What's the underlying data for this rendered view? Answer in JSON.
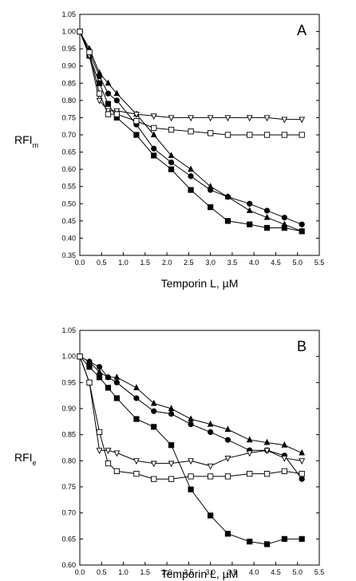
{
  "chart_data": [
    {
      "type": "line",
      "panel_label": "A",
      "xlabel": "Temporin L, µM",
      "ylabel": "RFI",
      "ylabel_sub": "m",
      "xlim": [
        0.0,
        5.5
      ],
      "ylim": [
        0.35,
        1.05
      ],
      "xticks": [
        "0.0",
        "0.5",
        "1.0",
        "1.5",
        "2.0",
        "2.5",
        "3.0",
        "3.5",
        "4.0",
        "4.5",
        "5.0",
        "5.5"
      ],
      "yticks": [
        "0.35",
        "0.40",
        "0.45",
        "0.50",
        "0.55",
        "0.60",
        "0.65",
        "0.70",
        "0.75",
        "0.80",
        "0.85",
        "0.90",
        "0.95",
        "1.00",
        "1.05"
      ],
      "grid": false,
      "series": [
        {
          "marker": "filled-triangle",
          "x": [
            0.0,
            0.22,
            0.45,
            0.65,
            0.85,
            1.3,
            1.7,
            2.1,
            2.55,
            3.0,
            3.4,
            3.9,
            4.3,
            4.7,
            5.1
          ],
          "y": [
            1.0,
            0.95,
            0.88,
            0.85,
            0.82,
            0.76,
            0.7,
            0.64,
            0.6,
            0.55,
            0.52,
            0.48,
            0.46,
            0.44,
            0.42
          ]
        },
        {
          "marker": "filled-circle",
          "x": [
            0.0,
            0.22,
            0.45,
            0.65,
            0.85,
            1.3,
            1.7,
            2.1,
            2.55,
            3.0,
            3.4,
            3.9,
            4.3,
            4.7,
            5.1
          ],
          "y": [
            1.0,
            0.94,
            0.87,
            0.82,
            0.8,
            0.73,
            0.66,
            0.62,
            0.58,
            0.54,
            0.52,
            0.5,
            0.48,
            0.46,
            0.44
          ]
        },
        {
          "marker": "filled-square",
          "x": [
            0.0,
            0.22,
            0.45,
            0.65,
            0.85,
            1.3,
            1.7,
            2.1,
            2.55,
            3.0,
            3.4,
            3.9,
            4.3,
            4.7,
            5.1
          ],
          "y": [
            1.0,
            0.93,
            0.85,
            0.79,
            0.75,
            0.7,
            0.64,
            0.6,
            0.54,
            0.49,
            0.45,
            0.44,
            0.43,
            0.43,
            0.42
          ]
        },
        {
          "marker": "open-triangle-down",
          "x": [
            0.0,
            0.22,
            0.45,
            0.65,
            0.85,
            1.3,
            1.7,
            2.1,
            2.55,
            3.0,
            3.4,
            3.9,
            4.3,
            4.7,
            5.1
          ],
          "y": [
            1.0,
            0.93,
            0.8,
            0.77,
            0.77,
            0.76,
            0.755,
            0.75,
            0.75,
            0.75,
            0.75,
            0.75,
            0.75,
            0.745,
            0.745
          ]
        },
        {
          "marker": "open-square",
          "x": [
            0.0,
            0.22,
            0.45,
            0.65,
            0.85,
            1.3,
            1.7,
            2.1,
            2.55,
            3.0,
            3.4,
            3.9,
            4.3,
            4.7,
            5.1
          ],
          "y": [
            1.0,
            0.94,
            0.82,
            0.76,
            0.76,
            0.74,
            0.72,
            0.715,
            0.71,
            0.705,
            0.7,
            0.7,
            0.7,
            0.7,
            0.7
          ]
        }
      ]
    },
    {
      "type": "line",
      "panel_label": "B",
      "xlabel": "Temporin L, µM",
      "ylabel": "RFI",
      "ylabel_sub": "e",
      "xlim": [
        0.0,
        5.5
      ],
      "ylim": [
        0.6,
        1.05
      ],
      "xticks": [
        "0.0",
        "0.5",
        "1.0",
        "1.5",
        "2.0",
        "2.5",
        "3.0",
        "3.5",
        "4.0",
        "4.5",
        "5.0",
        "5.5"
      ],
      "yticks": [
        "0.60",
        "0.65",
        "0.70",
        "0.75",
        "0.80",
        "0.85",
        "0.90",
        "0.95",
        "1.00",
        "1.05"
      ],
      "grid": false,
      "series": [
        {
          "marker": "filled-triangle",
          "x": [
            0.0,
            0.22,
            0.45,
            0.65,
            0.85,
            1.3,
            1.7,
            2.1,
            2.55,
            3.0,
            3.4,
            3.9,
            4.3,
            4.7,
            5.1
          ],
          "y": [
            1.0,
            0.99,
            0.97,
            0.96,
            0.96,
            0.94,
            0.91,
            0.9,
            0.88,
            0.87,
            0.86,
            0.84,
            0.835,
            0.83,
            0.815
          ]
        },
        {
          "marker": "filled-circle",
          "x": [
            0.0,
            0.22,
            0.45,
            0.65,
            0.85,
            1.3,
            1.7,
            2.1,
            2.55,
            3.0,
            3.4,
            3.9,
            4.3,
            4.7,
            5.1
          ],
          "y": [
            1.0,
            0.99,
            0.98,
            0.96,
            0.95,
            0.92,
            0.895,
            0.89,
            0.87,
            0.855,
            0.84,
            0.82,
            0.82,
            0.81,
            0.765
          ]
        },
        {
          "marker": "filled-square",
          "x": [
            0.0,
            0.22,
            0.45,
            0.65,
            0.85,
            1.3,
            1.7,
            2.1,
            2.55,
            3.0,
            3.4,
            3.9,
            4.3,
            4.7,
            5.1
          ],
          "y": [
            1.0,
            0.98,
            0.96,
            0.94,
            0.92,
            0.88,
            0.865,
            0.83,
            0.745,
            0.695,
            0.66,
            0.645,
            0.64,
            0.65,
            0.65
          ]
        },
        {
          "marker": "open-triangle-down",
          "x": [
            0.0,
            0.22,
            0.45,
            0.65,
            0.85,
            1.3,
            1.7,
            2.1,
            2.55,
            3.0,
            3.4,
            3.9,
            4.3,
            4.7,
            5.1
          ],
          "y": [
            1.0,
            0.95,
            0.82,
            0.82,
            0.815,
            0.8,
            0.795,
            0.795,
            0.8,
            0.79,
            0.805,
            0.815,
            0.82,
            0.805,
            0.8
          ]
        },
        {
          "marker": "open-square",
          "x": [
            0.0,
            0.22,
            0.45,
            0.65,
            0.85,
            1.3,
            1.7,
            2.1,
            2.55,
            3.0,
            3.4,
            3.9,
            4.3,
            4.7,
            5.1
          ],
          "y": [
            1.0,
            0.95,
            0.855,
            0.795,
            0.78,
            0.775,
            0.765,
            0.765,
            0.77,
            0.77,
            0.77,
            0.775,
            0.775,
            0.78,
            0.775
          ]
        }
      ]
    }
  ]
}
